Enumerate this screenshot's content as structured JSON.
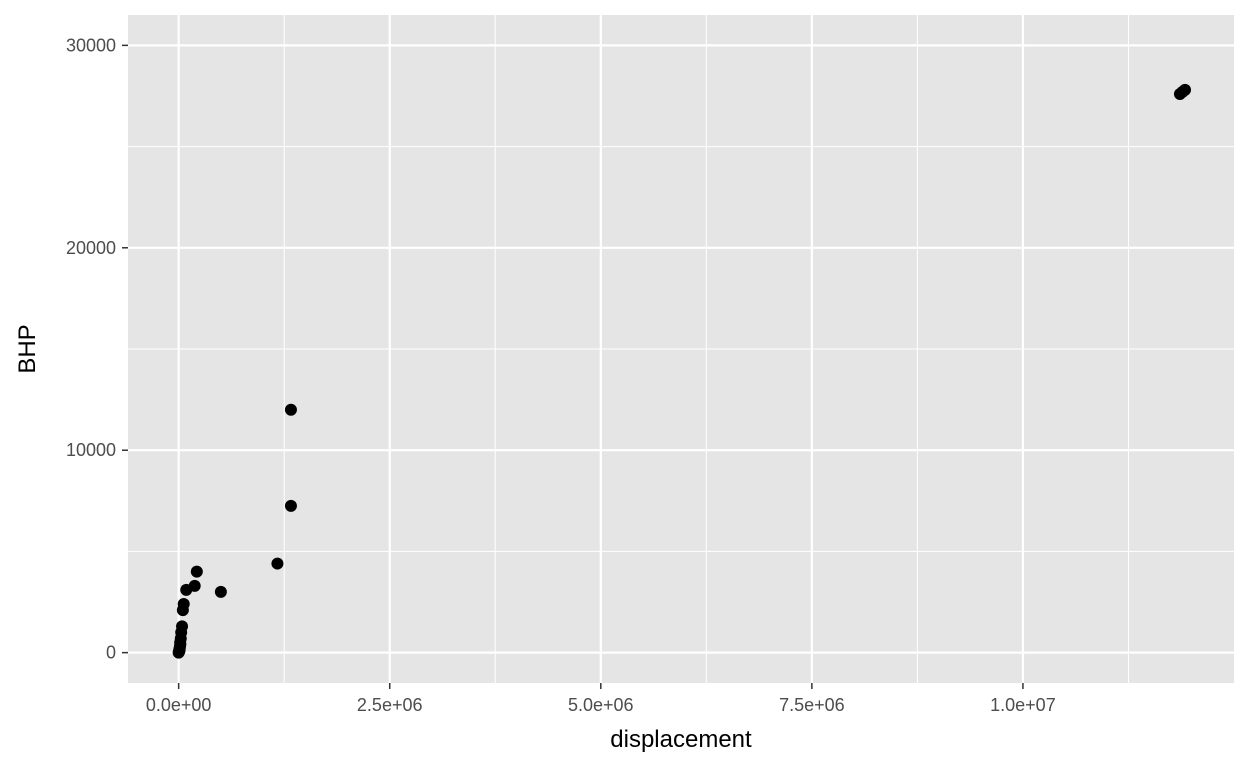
{
  "chart_data": {
    "type": "scatter",
    "title": "",
    "xlabel": "displacement",
    "ylabel": "BHP",
    "xlim": [
      -600000,
      12500000
    ],
    "ylim": [
      -1500,
      31500
    ],
    "x_ticks": [
      0,
      2500000,
      5000000,
      7500000,
      10000000
    ],
    "x_tick_labels": [
      "0.0e+00",
      "2.5e+06",
      "5.0e+06",
      "7.5e+06",
      "1.0e+07"
    ],
    "x_minor_ticks": [
      1250000,
      3750000,
      6250000,
      8750000,
      11250000
    ],
    "y_ticks": [
      0,
      10000,
      20000,
      30000
    ],
    "y_tick_labels": [
      "0",
      "10000",
      "20000",
      "30000"
    ],
    "y_minor_ticks": [
      5000,
      15000,
      25000
    ],
    "grid": true,
    "colors": {
      "panel": "#E5E5E5",
      "grid": "#FFFFFF",
      "point": "#000000",
      "tick": "#333333"
    },
    "points": [
      {
        "x": 0,
        "y": 0
      },
      {
        "x": 5000,
        "y": 50
      },
      {
        "x": 10000,
        "y": 100
      },
      {
        "x": 8000,
        "y": 150
      },
      {
        "x": 12000,
        "y": 200
      },
      {
        "x": 15000,
        "y": 300
      },
      {
        "x": 20000,
        "y": 400
      },
      {
        "x": 18000,
        "y": 500
      },
      {
        "x": 25000,
        "y": 700
      },
      {
        "x": 30000,
        "y": 1000
      },
      {
        "x": 40000,
        "y": 1300
      },
      {
        "x": 50000,
        "y": 2100
      },
      {
        "x": 60000,
        "y": 2400
      },
      {
        "x": 90000,
        "y": 3100
      },
      {
        "x": 190000,
        "y": 3300
      },
      {
        "x": 215000,
        "y": 4000
      },
      {
        "x": 500000,
        "y": 3000
      },
      {
        "x": 1170000,
        "y": 4400
      },
      {
        "x": 1330000,
        "y": 7250
      },
      {
        "x": 1330000,
        "y": 12000
      },
      {
        "x": 11860000,
        "y": 27600
      },
      {
        "x": 11890000,
        "y": 27700
      },
      {
        "x": 11920000,
        "y": 27800
      }
    ]
  }
}
